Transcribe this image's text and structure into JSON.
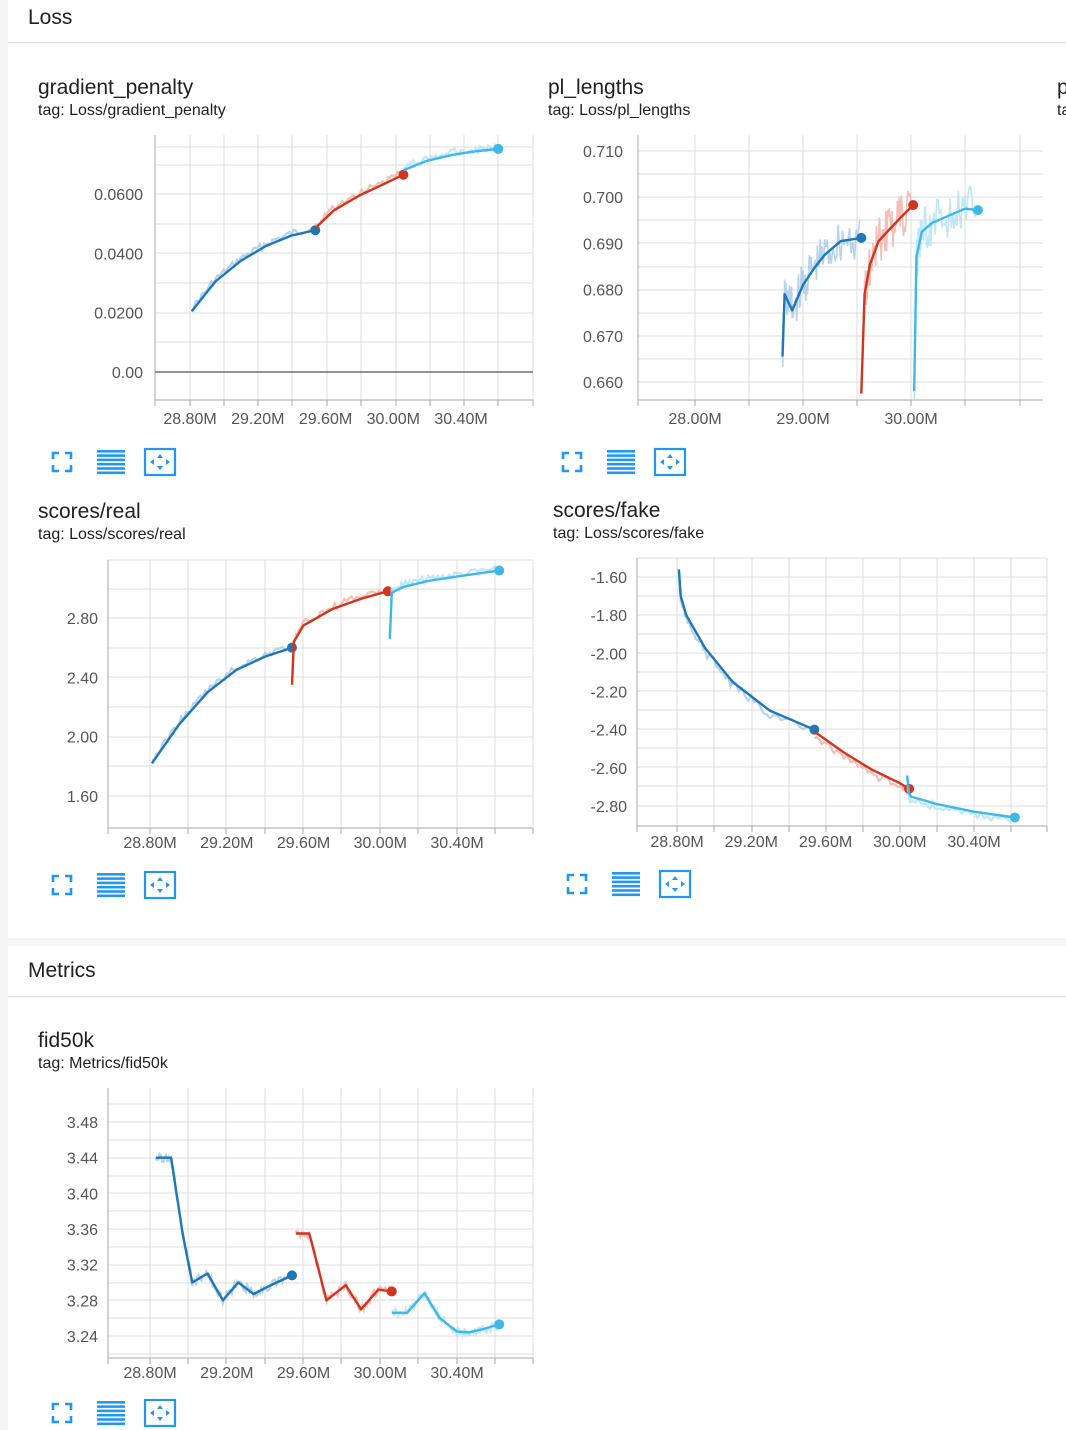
{
  "sections": {
    "loss": {
      "title": "Loss"
    },
    "metrics": {
      "title": "Metrics"
    }
  },
  "cards": {
    "gp": {
      "title": "gradient_penalty",
      "tag": "tag: Loss/gradient_penalty"
    },
    "pl": {
      "title": "pl_lengths",
      "tag": "tag: Loss/pl_lengths"
    },
    "pl_next": {
      "title": "p",
      "tag": "ta"
    },
    "real": {
      "title": "scores/real",
      "tag": "tag: Loss/scores/real"
    },
    "fake": {
      "title": "scores/fake",
      "tag": "tag: Loss/scores/fake"
    },
    "fid": {
      "title": "fid50k",
      "tag": "tag: Metrics/fid50k"
    }
  },
  "icons": [
    "expand-icon",
    "list-icon",
    "fit-domain-icon"
  ],
  "colors": {
    "run1": "#1f77b4",
    "run2": "#d0351f",
    "run3": "#3fb8e8",
    "run1_raw": "#a9cbe8",
    "run2_raw": "#f0b5ab",
    "run3_raw": "#b4e4f5"
  },
  "chart_data": [
    {
      "id": "gp",
      "type": "line",
      "xticks": [
        "28.80M",
        "29.20M",
        "29.60M",
        "30.00M",
        "30.40M"
      ],
      "yticks": [
        "0.00",
        "0.0200",
        "0.0400",
        "0.0600"
      ],
      "series": [
        {
          "color": "#1f77b4",
          "x": [
            28.81,
            28.95,
            29.1,
            29.25,
            29.4,
            29.54
          ],
          "y": [
            0.0205,
            0.0305,
            0.0375,
            0.0425,
            0.046,
            0.0478
          ]
        },
        {
          "color": "#d0351f",
          "x": [
            29.54,
            29.65,
            29.8,
            29.95,
            30.06
          ],
          "y": [
            0.0485,
            0.0545,
            0.0595,
            0.0635,
            0.0665
          ]
        },
        {
          "color": "#3fb8e8",
          "x": [
            30.06,
            30.2,
            30.35,
            30.5,
            30.62
          ],
          "y": [
            0.068,
            0.0712,
            0.0732,
            0.0745,
            0.0752
          ]
        }
      ]
    },
    {
      "id": "pl",
      "type": "line",
      "xticks": [
        "28.00M",
        "29.00M",
        "30.00M"
      ],
      "yticks": [
        "0.660",
        "0.670",
        "0.680",
        "0.690",
        "0.700",
        "0.710"
      ],
      "series": [
        {
          "color": "#1f77b4",
          "x": [
            28.81,
            28.83,
            28.9,
            29.0,
            29.1,
            29.2,
            29.35,
            29.54
          ],
          "y": [
            0.6655,
            0.679,
            0.6755,
            0.681,
            0.6845,
            0.6875,
            0.6905,
            0.6912
          ]
        },
        {
          "color": "#d0351f",
          "x": [
            29.54,
            29.57,
            29.62,
            29.7,
            29.8,
            29.9,
            30.02
          ],
          "y": [
            0.6575,
            0.679,
            0.6855,
            0.6905,
            0.693,
            0.6955,
            0.6983
          ]
        },
        {
          "color": "#3fb8e8",
          "x": [
            30.03,
            30.05,
            30.1,
            30.2,
            30.35,
            30.5,
            30.62
          ],
          "y": [
            0.658,
            0.687,
            0.6925,
            0.6945,
            0.696,
            0.6975,
            0.6972
          ]
        }
      ]
    },
    {
      "id": "real",
      "type": "line",
      "xticks": [
        "28.80M",
        "29.20M",
        "29.60M",
        "30.00M",
        "30.40M"
      ],
      "yticks": [
        "1.60",
        "2.00",
        "2.40",
        "2.80"
      ],
      "series": [
        {
          "color": "#1f77b4",
          "x": [
            28.81,
            28.95,
            29.1,
            29.25,
            29.4,
            29.54
          ],
          "y": [
            1.82,
            2.08,
            2.3,
            2.45,
            2.54,
            2.6
          ]
        },
        {
          "color": "#d0351f",
          "x": [
            29.54,
            29.55,
            29.6,
            29.75,
            29.9,
            30.04
          ],
          "y": [
            2.35,
            2.64,
            2.75,
            2.86,
            2.93,
            2.98
          ]
        },
        {
          "color": "#3fb8e8",
          "x": [
            30.05,
            30.06,
            30.12,
            30.25,
            30.4,
            30.62
          ],
          "y": [
            2.66,
            2.97,
            3.01,
            3.05,
            3.08,
            3.12
          ]
        }
      ]
    },
    {
      "id": "fake",
      "type": "line",
      "xticks": [
        "28.80M",
        "29.20M",
        "29.60M",
        "30.00M",
        "30.40M"
      ],
      "yticks": [
        "-1.60",
        "-1.80",
        "-2.00",
        "-2.20",
        "-2.40",
        "-2.60",
        "-2.80"
      ],
      "series": [
        {
          "color": "#1f77b4",
          "x": [
            28.81,
            28.82,
            28.85,
            28.95,
            29.1,
            29.3,
            29.54
          ],
          "y": [
            -1.56,
            -1.7,
            -1.8,
            -1.97,
            -2.15,
            -2.3,
            -2.4
          ]
        },
        {
          "color": "#d0351f",
          "x": [
            29.54,
            29.7,
            29.85,
            30.0,
            30.05
          ],
          "y": [
            -2.41,
            -2.52,
            -2.61,
            -2.68,
            -2.71
          ]
        },
        {
          "color": "#3fb8e8",
          "x": [
            30.04,
            30.05,
            30.06,
            30.2,
            30.4,
            30.62
          ],
          "y": [
            -2.64,
            -2.73,
            -2.75,
            -2.79,
            -2.83,
            -2.86
          ]
        }
      ]
    },
    {
      "id": "fid",
      "type": "line",
      "xticks": [
        "28.80M",
        "29.20M",
        "29.60M",
        "30.00M",
        "30.40M"
      ],
      "yticks": [
        "3.24",
        "3.28",
        "3.32",
        "3.36",
        "3.40",
        "3.44",
        "3.48"
      ],
      "series": [
        {
          "color": "#1f77b4",
          "x": [
            28.83,
            28.91,
            28.97,
            29.02,
            29.1,
            29.18,
            29.26,
            29.34,
            29.42,
            29.54
          ],
          "y": [
            3.44,
            3.44,
            3.355,
            3.3,
            3.31,
            3.28,
            3.3,
            3.287,
            3.296,
            3.308
          ]
        },
        {
          "color": "#d0351f",
          "x": [
            29.56,
            29.63,
            29.72,
            29.82,
            29.9,
            29.99,
            30.06
          ],
          "y": [
            3.355,
            3.355,
            3.28,
            3.297,
            3.27,
            3.292,
            3.29
          ]
        },
        {
          "color": "#3fb8e8",
          "x": [
            30.06,
            30.14,
            30.23,
            30.31,
            30.4,
            30.46,
            30.54,
            30.62
          ],
          "y": [
            3.266,
            3.266,
            3.288,
            3.26,
            3.245,
            3.244,
            3.248,
            3.253
          ]
        }
      ]
    }
  ]
}
